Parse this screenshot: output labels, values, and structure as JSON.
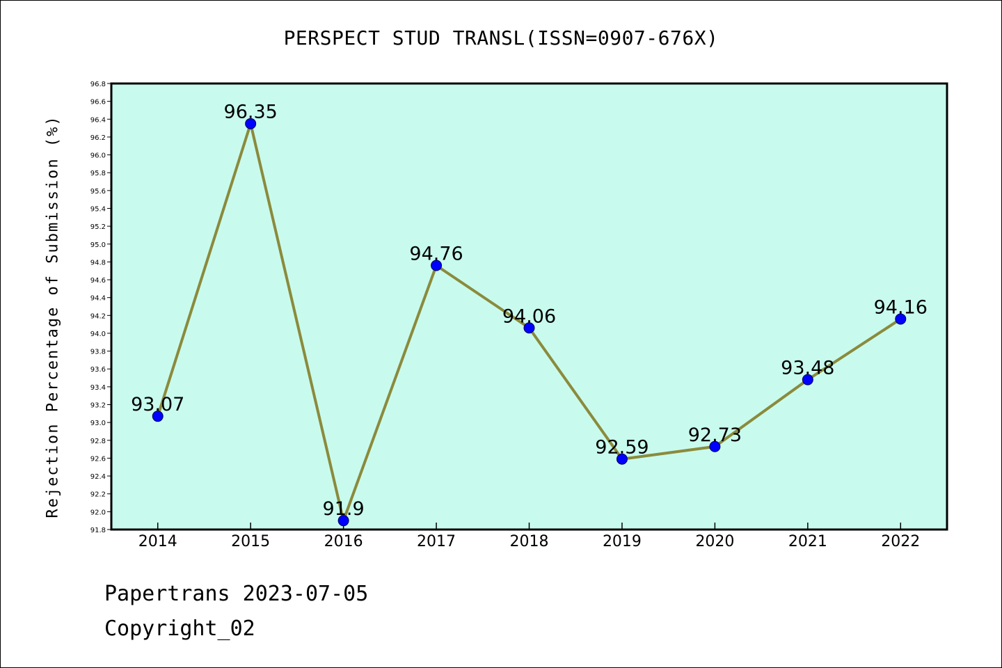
{
  "chart_data": {
    "type": "line",
    "title": "PERSPECT STUD TRANSL(ISSN=0907-676X)",
    "ylabel": "Rejection Percentage of Submission (%)",
    "xlabel": "",
    "categories": [
      "2014",
      "2015",
      "2016",
      "2017",
      "2018",
      "2019",
      "2020",
      "2021",
      "2022"
    ],
    "values": [
      93.07,
      96.35,
      91.9,
      94.76,
      94.06,
      92.59,
      92.73,
      93.48,
      94.16
    ],
    "data_labels": [
      "93.07",
      "96.35",
      "91.9",
      "94.76",
      "94.06",
      "92.59",
      "92.73",
      "93.48",
      "94.16"
    ],
    "ylim": [
      91.8,
      96.8
    ],
    "yticks": [
      "91.8",
      "92.0",
      "92.2",
      "92.4",
      "92.6",
      "92.8",
      "93.0",
      "93.2",
      "93.4",
      "93.6",
      "93.8",
      "94.0",
      "94.2",
      "94.4",
      "94.6",
      "94.8",
      "95.0",
      "95.2",
      "95.4",
      "95.6",
      "95.8",
      "96.0",
      "96.2",
      "96.4",
      "96.6",
      "96.8"
    ],
    "grid": false,
    "colors": {
      "plot_background": "#c8fbee",
      "line": "#8b8a3c",
      "marker": "#0000ff",
      "axis": "#000000"
    }
  },
  "footer": {
    "date_text": "Papertrans 2023-07-05",
    "copyright_text": "Copyright_02"
  }
}
